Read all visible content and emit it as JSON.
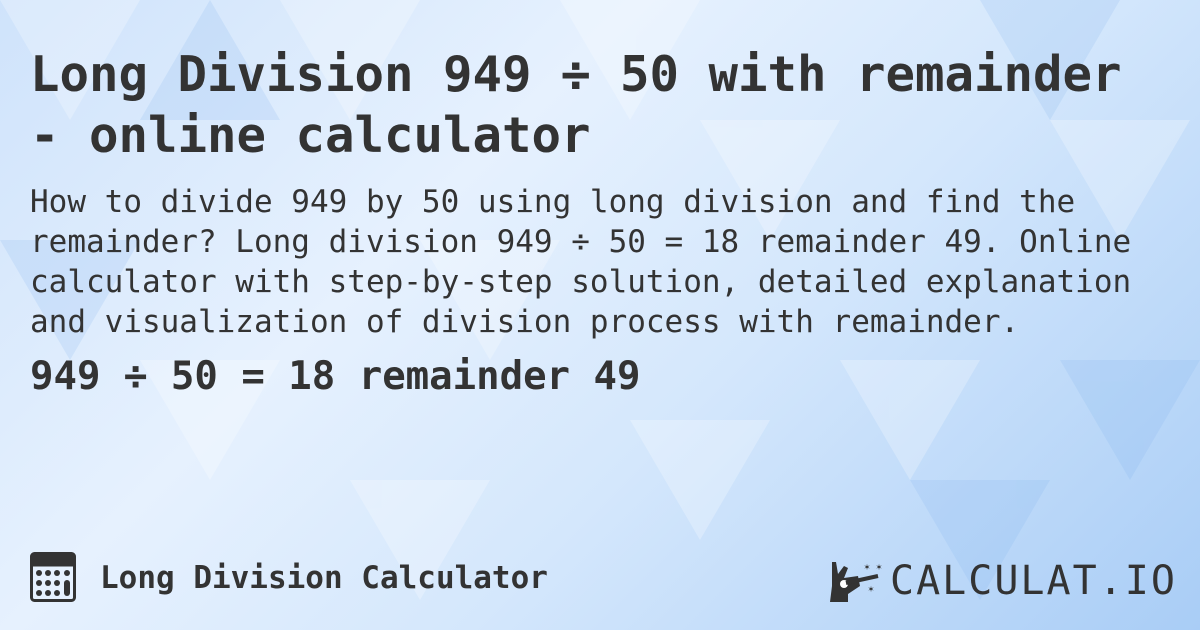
{
  "title": "Long Division 949 ÷ 50 with remainder - online calculator",
  "description": "How to divide 949 by 50 using long division and find the remainder? Long division 949 ÷ 50 = 18 remainder 49. Online calculator with step-by-step solution, detailed explanation and visualization of division process with remainder.",
  "result": "949 ÷ 50 = 18 remainder 49",
  "footer": {
    "icon": "calculator-icon",
    "label": "Long Division Calculator"
  },
  "logo": {
    "text": "CALCULAT.IO",
    "icon": "magic-hand-icon"
  },
  "colors": {
    "text": "#333333",
    "background": "#d6e8fc"
  }
}
